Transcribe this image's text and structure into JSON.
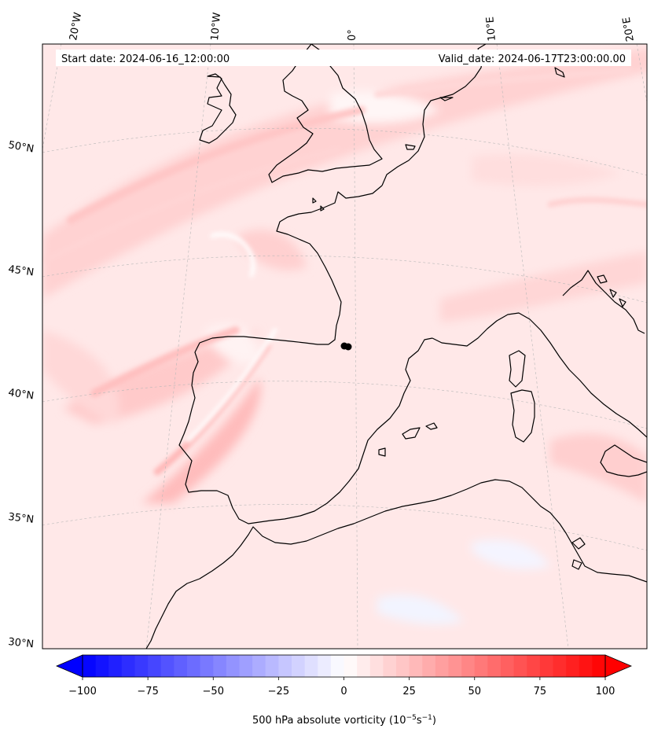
{
  "header": {
    "start_label": "Start date: 2024-06-16_12:00:00",
    "valid_label": "Valid_date: 2024-06-17T23:00:00.00"
  },
  "map": {
    "projection": "conic",
    "land_color": "#ffecec",
    "coastline_color": "#000000",
    "grid_style": "dashed light gray",
    "lon_labels": [
      "20°W",
      "10°W",
      "0°",
      "10°E",
      "20°E"
    ],
    "lat_labels": [
      "50°N",
      "45°N",
      "40°N",
      "35°N",
      "30°N"
    ],
    "marker": {
      "color": "#000000",
      "note_text": ""
    }
  },
  "colorbar": {
    "title_text": "500 hPa absolute vorticity (",
    "unit_main": "10",
    "unit_exp1": "−5",
    "unit_mid": "s",
    "unit_exp2": "−1",
    "unit_close": ")",
    "ticks": [
      "−100",
      "−75",
      "−50",
      "−25",
      "0",
      "25",
      "50",
      "75",
      "100"
    ],
    "range": [
      -100,
      100
    ],
    "colors": {
      "min": "#0000ff",
      "mid": "#ffffff",
      "max": "#ff0000"
    },
    "extend": "both"
  }
}
